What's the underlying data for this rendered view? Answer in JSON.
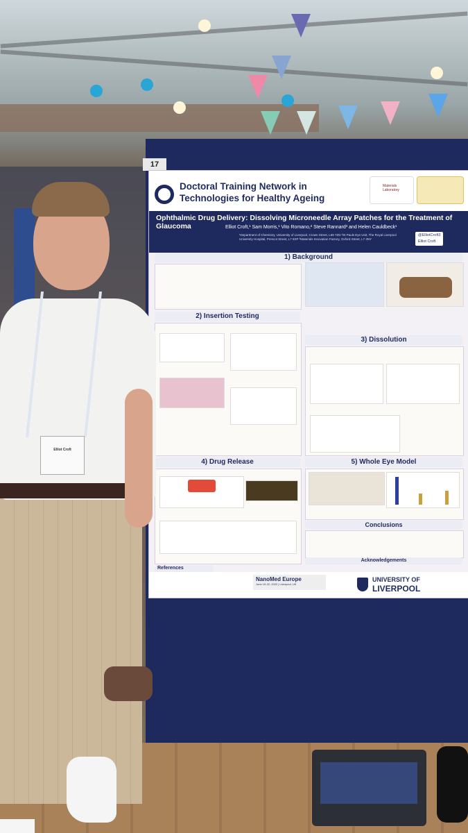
{
  "board": {
    "number": "17"
  },
  "poster": {
    "network_title": "Doctoral Training Network in Technologies for Healthy Ageing",
    "logo_lab": "Materials Laboratory",
    "main_title": "Ophthalmic Drug Delivery: Dissolving Microneedle Array Patches for the Treatment of Glaucoma",
    "authors": "Elliot Croft,¹ Sam Morris,¹ Vito Romano,² Steve Rannard³ and Helen Cauldbeck¹",
    "affiliations": "¹Department of Chemistry, University of Liverpool, Crown Street, L69 7ZD ²St Pauls Eye Unit, The Royal Liverpool University Hospital, Prescot Street, L7 8XP ³Materials Innovation Factory, Oxford Street, L7 3NY",
    "social_twitter": "@ElliotCroft3",
    "social_linkedin": "Elliot Croft",
    "sections": {
      "background": "1) Background",
      "insertion": "2) Insertion Testing",
      "dissolution": "3) Dissolution",
      "drug_release": "4) Drug Release",
      "whole_eye": "5) Whole Eye Model",
      "conclusions": "Conclusions",
      "acknowledgements": "Acknowledgements",
      "references": "References"
    },
    "footer": {
      "conference": "NanoMed Europe",
      "conference_dates": "June 19-22, 2022 | Liverpool, UK",
      "university_line1": "UNIVERSITY OF",
      "university_line2": "LIVERPOOL"
    }
  },
  "person": {
    "badge_name": "Elliot Croft"
  }
}
